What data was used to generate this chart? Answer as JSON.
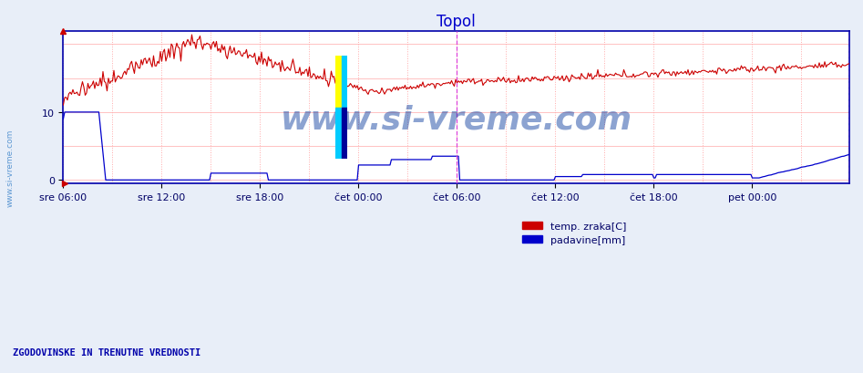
{
  "title": "Topol",
  "title_color": "#0000cc",
  "background_color": "#e8eef8",
  "plot_bg_color": "#ffffff",
  "yticks": [
    0,
    10
  ],
  "ylim": [
    -0.5,
    22
  ],
  "xlim": [
    0,
    575
  ],
  "x_tick_positions": [
    0,
    72,
    144,
    216,
    288,
    360,
    432,
    504
  ],
  "x_tick_labels": [
    "sre 06:00",
    "sre 12:00",
    "sre 18:00",
    "čet 00:00",
    "čet 06:00",
    "čet 12:00",
    "čet 18:00",
    "pet 00:00"
  ],
  "watermark_text": "www.si-vreme.com",
  "footer_text": "ZGODOVINSKE IN TRENUTNE VREDNOSTI",
  "legend_entries": [
    "temp. zraka[C]",
    "padavine[mm]"
  ],
  "legend_colors": [
    "#cc0000",
    "#0000cc"
  ],
  "temp_color": "#cc0000",
  "precip_color": "#0000cc",
  "vline_color": "#dd44dd",
  "vline_positions": [
    288,
    575
  ],
  "grid_v_color": "#ffaaaa",
  "grid_h_color": "#ffaaaa",
  "sidebar_text": "www.si-vreme.com",
  "sidebar_color": "#4488cc",
  "n_points": 576
}
